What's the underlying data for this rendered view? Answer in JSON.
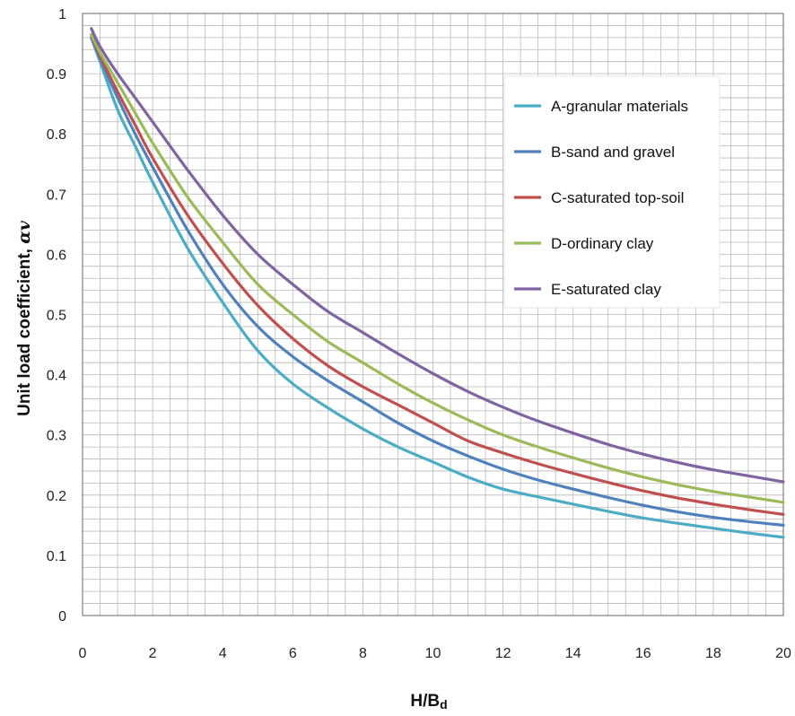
{
  "chart_data": {
    "type": "line",
    "title": "",
    "xlabel": "H/B",
    "xlabel_sub": "d",
    "ylabel": "Unit load coefficient, ",
    "ylabel_symbol": "αv",
    "xlim": [
      0,
      20
    ],
    "ylim": [
      0,
      1
    ],
    "x_ticks": [
      0,
      2,
      4,
      6,
      8,
      10,
      12,
      14,
      16,
      18,
      20
    ],
    "y_ticks": [
      0,
      0.1,
      0.2,
      0.3,
      0.4,
      0.5,
      0.6,
      0.7,
      0.8,
      0.9,
      1
    ],
    "x_tick_labels": [
      "0",
      "2",
      "4",
      "6",
      "8",
      "10",
      "12",
      "14",
      "16",
      "18",
      "20"
    ],
    "y_tick_labels": [
      "0",
      "0.1",
      "0.2",
      "0.3",
      "0.4",
      "0.5",
      "0.6",
      "0.7",
      "0.8",
      "0.9",
      "1"
    ],
    "grid": true,
    "legend_position": "top-right",
    "x": [
      0.25,
      0.5,
      1,
      1.5,
      2,
      3,
      4,
      5,
      6,
      7,
      8,
      9,
      10,
      11,
      12,
      13,
      14,
      15,
      16,
      17,
      18,
      19,
      20
    ],
    "series": [
      {
        "name": "A-granular materials",
        "color": "#4bacc6",
        "values": [
          0.96,
          0.92,
          0.84,
          0.78,
          0.72,
          0.61,
          0.52,
          0.44,
          0.385,
          0.345,
          0.31,
          0.28,
          0.255,
          0.23,
          0.21,
          0.197,
          0.185,
          0.173,
          0.162,
          0.153,
          0.145,
          0.137,
          0.13
        ]
      },
      {
        "name": "B-sand and gravel",
        "color": "#4f81bd",
        "values": [
          0.96,
          0.925,
          0.86,
          0.8,
          0.745,
          0.64,
          0.55,
          0.48,
          0.43,
          0.39,
          0.355,
          0.32,
          0.29,
          0.265,
          0.243,
          0.225,
          0.21,
          0.196,
          0.183,
          0.172,
          0.163,
          0.156,
          0.15
        ]
      },
      {
        "name": "C-saturated top-soil",
        "color": "#c0504d",
        "values": [
          0.965,
          0.93,
          0.87,
          0.815,
          0.76,
          0.665,
          0.585,
          0.515,
          0.46,
          0.415,
          0.38,
          0.35,
          0.32,
          0.29,
          0.27,
          0.252,
          0.236,
          0.221,
          0.207,
          0.195,
          0.185,
          0.176,
          0.168
        ]
      },
      {
        "name": "D-ordinary clay",
        "color": "#9bbb59",
        "values": [
          0.965,
          0.935,
          0.885,
          0.835,
          0.785,
          0.695,
          0.62,
          0.55,
          0.5,
          0.455,
          0.42,
          0.385,
          0.353,
          0.325,
          0.3,
          0.28,
          0.262,
          0.245,
          0.23,
          0.217,
          0.206,
          0.197,
          0.188
        ]
      },
      {
        "name": "E-saturated clay",
        "color": "#8064a2",
        "values": [
          0.975,
          0.945,
          0.9,
          0.86,
          0.82,
          0.74,
          0.665,
          0.6,
          0.55,
          0.505,
          0.47,
          0.435,
          0.402,
          0.372,
          0.346,
          0.323,
          0.303,
          0.284,
          0.268,
          0.254,
          0.242,
          0.232,
          0.222
        ]
      }
    ]
  }
}
